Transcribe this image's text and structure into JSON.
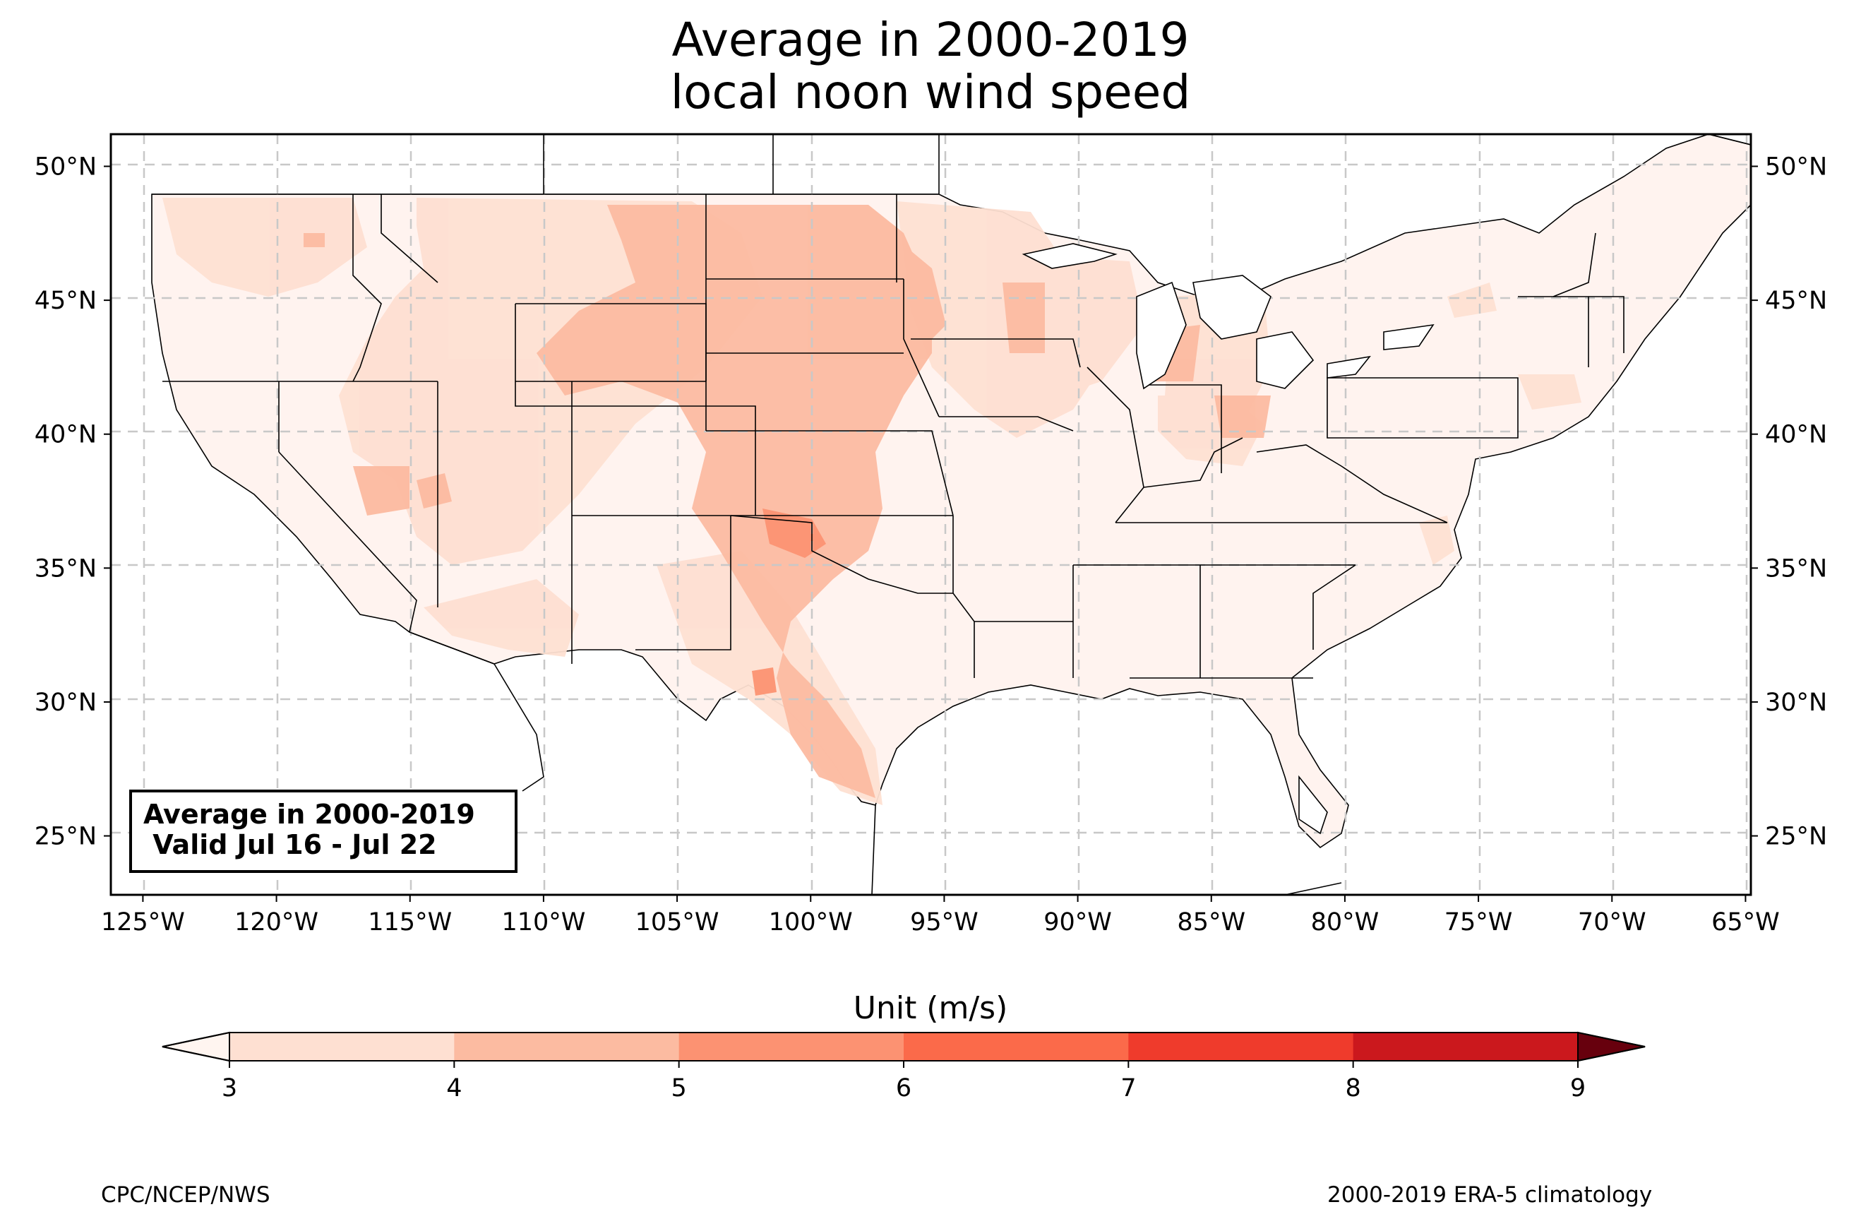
{
  "title": {
    "line1": "Average in 2000-2019",
    "line2": "local noon wind speed"
  },
  "map": {
    "lat_labels": [
      "50°N",
      "45°N",
      "40°N",
      "35°N",
      "30°N",
      "25°N"
    ],
    "lon_labels": [
      "125°W",
      "120°W",
      "115°W",
      "110°W",
      "105°W",
      "100°W",
      "95°W",
      "90°W",
      "85°W",
      "80°W",
      "75°W",
      "70°W",
      "65°W"
    ],
    "lat_range": [
      22.8,
      51.2
    ],
    "lon_range": [
      -126.2,
      -64.8
    ],
    "gridlines": true
  },
  "infobox": {
    "line1": "Average in 2000-2019",
    "line2": " Valid Jul 16 - Jul 22"
  },
  "colorbar": {
    "title": "Unit (m/s)",
    "ticks": [
      "3",
      "4",
      "5",
      "6",
      "7",
      "8",
      "9"
    ],
    "colors": [
      "#fee0d2",
      "#fcbba1",
      "#fc9272",
      "#fb6a4a",
      "#ef3b2c",
      "#cb181d",
      "#a50f15"
    ],
    "under_color": "#fff5f0",
    "over_color": "#67000d",
    "extend": "both"
  },
  "credits": {
    "left": "CPC/NCEP/NWS",
    "right": "2000-2019 ERA-5 climatology"
  }
}
